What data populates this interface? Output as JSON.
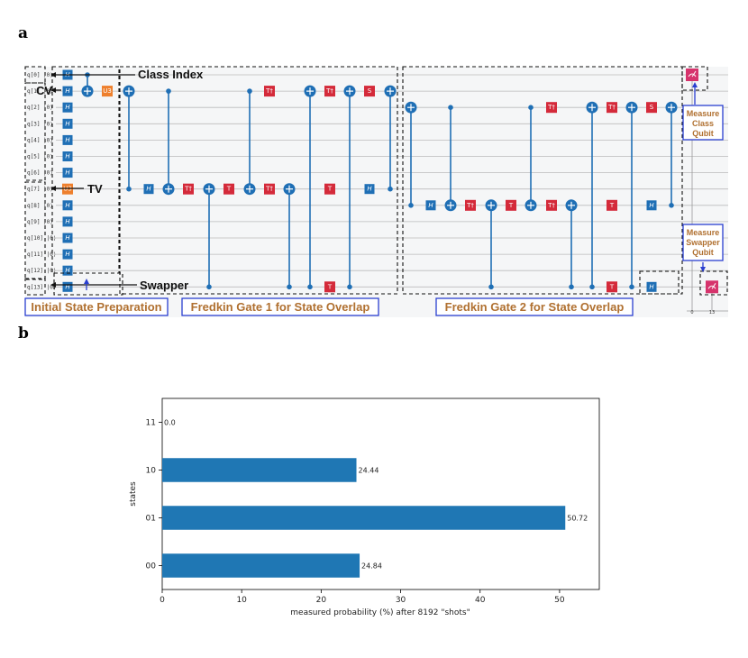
{
  "panels": {
    "a": "a",
    "b": "b"
  },
  "circuit": {
    "qubits": [
      "q[0]",
      "q[1]",
      "q[2]",
      "q[3]",
      "q[4]",
      "q[5]",
      "q[6]",
      "q[7]",
      "q[8]",
      "q[9]",
      "q[10]",
      "q[11]",
      "q[12]",
      "q[13]"
    ],
    "qubit_states": [
      "|0⟩",
      "|0⟩",
      "|0⟩",
      "|0⟩",
      "|0⟩",
      "|0⟩",
      "|0⟩",
      "|0⟩",
      "|0⟩",
      "|0⟩",
      "|0⟩",
      "|0⟩",
      "|0⟩",
      "|0⟩"
    ],
    "annotations": {
      "class_index": "Class Index",
      "cv": "CV",
      "tv": "TV",
      "swapper": "Swapper"
    },
    "sections": {
      "init": "Initial State Preparation",
      "fredkin1": "Fredkin Gate 1 for State Overlap",
      "fredkin2": "Fredkin Gate 2 for State Overlap"
    },
    "measure_class": [
      "Measure",
      "Class",
      "Qubit"
    ],
    "measure_swapper": [
      "Measure",
      "Swapper",
      "Qubit"
    ],
    "classical_labels": [
      "0",
      "13"
    ],
    "gate_labels": {
      "h": "H",
      "t": "T",
      "tdg": "T†",
      "s": "S",
      "u3": "U3"
    },
    "colors": {
      "hadamard": "#1f6fb5",
      "phase": "#d42a3a",
      "u3": "#ee7f2c",
      "measure": "#d6336c",
      "wire": "#bbbbbb",
      "section_label": "#b07030",
      "section_border": "#2a3fd0"
    }
  },
  "chart_data": {
    "type": "bar",
    "orientation": "horizontal",
    "categories": [
      "00",
      "01",
      "10",
      "11"
    ],
    "values": [
      24.84,
      50.72,
      24.44,
      0.0
    ],
    "value_labels": [
      "24.84",
      "50.72",
      "24.44",
      "0.0"
    ],
    "xlabel": "measured probability (%) after 8192 \"shots\"",
    "ylabel": "states",
    "xlim": [
      0,
      55
    ],
    "xticks": [
      0,
      10,
      20,
      30,
      40,
      50
    ],
    "bar_color": "#1f77b4",
    "grid": false,
    "legend": "none"
  }
}
